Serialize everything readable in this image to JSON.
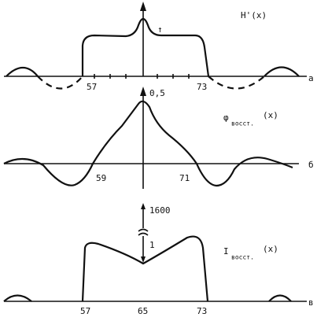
{
  "panels": [
    {
      "label": "H'(x)",
      "letter": "а",
      "ticks": [
        "57",
        "73"
      ],
      "marker": "↑"
    },
    {
      "label": "φ",
      "subscript": "восст.",
      "argument": "(x)",
      "letter": "б",
      "ticks": [
        "59",
        "71"
      ],
      "axis_value": "0,5"
    },
    {
      "label": "I",
      "subscript": "восст.",
      "argument": "(x)",
      "letter": "в",
      "ticks": [
        "57",
        "65",
        "73"
      ],
      "axis_top": "1600",
      "axis_bottom": "1"
    }
  ]
}
